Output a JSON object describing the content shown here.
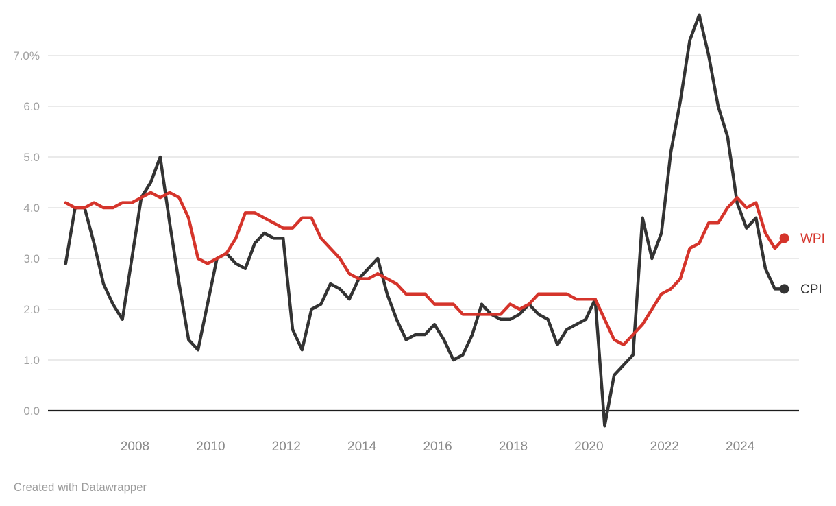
{
  "chart_data": {
    "type": "line",
    "title": "",
    "frequency": "quarterly",
    "start_period": "2006 Q1",
    "end_period": "2025 Q1",
    "grid": "horizontal",
    "legend_position": "end-of-line-labels",
    "x_tick_labels": [
      "2008",
      "2010",
      "2012",
      "2014",
      "2016",
      "2018",
      "2020",
      "2022",
      "2024"
    ],
    "y_ticks": [
      0,
      1,
      2,
      3,
      4,
      5,
      6,
      7
    ],
    "y_tick_labels": [
      "0.0",
      "1.0",
      "2.0",
      "3.0",
      "4.0",
      "5.0",
      "6.0",
      "7.0%"
    ],
    "ylim": [
      -0.5,
      7.9
    ],
    "series": [
      {
        "name": "WPI",
        "color": "#d5342b",
        "values": [
          4.1,
          4.0,
          4.0,
          4.1,
          4.0,
          4.0,
          4.1,
          4.1,
          4.2,
          4.3,
          4.2,
          4.3,
          4.2,
          3.8,
          3.0,
          2.9,
          3.0,
          3.1,
          3.4,
          3.9,
          3.9,
          3.8,
          3.7,
          3.6,
          3.6,
          3.8,
          3.8,
          3.4,
          3.2,
          3.0,
          2.7,
          2.6,
          2.6,
          2.7,
          2.6,
          2.5,
          2.3,
          2.3,
          2.3,
          2.1,
          2.1,
          2.1,
          1.9,
          1.9,
          1.9,
          1.9,
          1.9,
          2.1,
          2.0,
          2.1,
          2.3,
          2.3,
          2.3,
          2.3,
          2.2,
          2.2,
          2.2,
          1.8,
          1.4,
          1.3,
          1.5,
          1.7,
          2.0,
          2.3,
          2.4,
          2.6,
          3.2,
          3.3,
          3.7,
          3.7,
          4.0,
          4.2,
          4.0,
          4.1,
          3.5,
          3.2,
          3.4
        ]
      },
      {
        "name": "CPI",
        "color": "#333333",
        "values": [
          2.9,
          4.0,
          4.0,
          3.3,
          2.5,
          2.1,
          1.8,
          3.0,
          4.2,
          4.5,
          5.0,
          3.7,
          2.5,
          1.4,
          1.2,
          2.1,
          3.0,
          3.1,
          2.9,
          2.8,
          3.3,
          3.5,
          3.4,
          3.4,
          1.6,
          1.2,
          2.0,
          2.1,
          2.5,
          2.4,
          2.2,
          2.6,
          2.8,
          3.0,
          2.3,
          1.8,
          1.4,
          1.5,
          1.5,
          1.7,
          1.4,
          1.0,
          1.1,
          1.5,
          2.1,
          1.9,
          1.8,
          1.8,
          1.9,
          2.1,
          1.9,
          1.8,
          1.3,
          1.6,
          1.7,
          1.8,
          2.2,
          -0.3,
          0.7,
          0.9,
          1.1,
          3.8,
          3.0,
          3.5,
          5.1,
          6.1,
          7.3,
          7.8,
          7.0,
          6.0,
          5.4,
          4.1,
          3.6,
          3.8,
          2.8,
          2.4,
          2.4
        ]
      }
    ]
  },
  "colors": {
    "background": "#ffffff",
    "grid": "#e4e4e4",
    "zero_line": "#1c1c1c",
    "y_label": "#a0a0a0",
    "x_label": "#8a8a8a",
    "credit": "#9b9b9b"
  },
  "footer": {
    "credit": "Created with Datawrapper"
  }
}
